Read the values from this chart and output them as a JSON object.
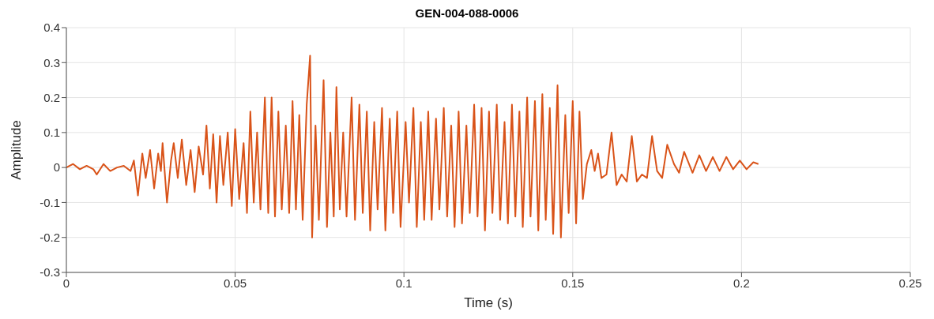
{
  "chart_data": {
    "type": "line",
    "title": "GEN-004-088-0006",
    "xlabel": "Time (s)",
    "ylabel": "Amplitude",
    "xlim": [
      0,
      0.25
    ],
    "xticks": [
      0,
      0.05,
      0.1,
      0.15,
      0.2,
      0.25
    ],
    "ylim": [
      -0.3,
      0.4
    ],
    "yticks": [
      -0.3,
      -0.2,
      -0.1,
      0,
      0.1,
      0.2,
      0.3,
      0.4
    ],
    "grid": true,
    "marker": "none",
    "line_style": "solid",
    "series": [
      {
        "color": "#d95319",
        "x": [
          0,
          0.002,
          0.004,
          0.006,
          0.008,
          0.009,
          0.011,
          0.013,
          0.015,
          0.017,
          0.019,
          0.02,
          0.0212,
          0.0225,
          0.0235,
          0.0248,
          0.026,
          0.0272,
          0.028,
          0.0285,
          0.0298,
          0.031,
          0.0318,
          0.033,
          0.0342,
          0.0355,
          0.0368,
          0.038,
          0.0392,
          0.0405,
          0.0415,
          0.0425,
          0.0435,
          0.0445,
          0.0455,
          0.0465,
          0.0478,
          0.049,
          0.05,
          0.0512,
          0.0525,
          0.0535,
          0.0545,
          0.0555,
          0.0565,
          0.0575,
          0.0588,
          0.0598,
          0.0608,
          0.0618,
          0.0628,
          0.0638,
          0.065,
          0.066,
          0.067,
          0.068,
          0.069,
          0.07,
          0.0712,
          0.0722,
          0.0728,
          0.0738,
          0.0748,
          0.0762,
          0.0772,
          0.0782,
          0.0792,
          0.08,
          0.081,
          0.082,
          0.083,
          0.0845,
          0.0855,
          0.0868,
          0.0878,
          0.089,
          0.09,
          0.0912,
          0.0922,
          0.0935,
          0.0945,
          0.0958,
          0.0968,
          0.098,
          0.099,
          0.1005,
          0.1015,
          0.1028,
          0.1038,
          0.105,
          0.106,
          0.1072,
          0.1082,
          0.1095,
          0.1105,
          0.1118,
          0.1128,
          0.114,
          0.115,
          0.1162,
          0.1172,
          0.1185,
          0.1195,
          0.1208,
          0.1218,
          0.123,
          0.124,
          0.1252,
          0.1262,
          0.1275,
          0.1285,
          0.1298,
          0.1308,
          0.132,
          0.133,
          0.1342,
          0.1352,
          0.1365,
          0.1375,
          0.1388,
          0.1398,
          0.141,
          0.142,
          0.1432,
          0.1442,
          0.1455,
          0.1465,
          0.1478,
          0.1488,
          0.15,
          0.151,
          0.152,
          0.153,
          0.1542,
          0.1555,
          0.1565,
          0.1575,
          0.1585,
          0.16,
          0.1615,
          0.163,
          0.1645,
          0.166,
          0.1675,
          0.169,
          0.1705,
          0.172,
          0.1735,
          0.175,
          0.1765,
          0.178,
          0.18,
          0.1815,
          0.183,
          0.1855,
          0.1875,
          0.1895,
          0.1915,
          0.1935,
          0.1955,
          0.1975,
          0.1995,
          0.2015,
          0.2035,
          0.205
        ],
        "values": [
          0,
          0.01,
          -0.005,
          0.005,
          -0.005,
          -0.02,
          0.01,
          -0.01,
          0,
          0.005,
          -0.01,
          0.02,
          -0.08,
          0.04,
          -0.03,
          0.05,
          -0.06,
          0.04,
          -0.01,
          0.07,
          -0.1,
          0.02,
          0.07,
          -0.03,
          0.08,
          -0.05,
          0.05,
          -0.07,
          0.06,
          -0.02,
          0.12,
          -0.06,
          0.095,
          -0.1,
          0.09,
          -0.05,
          0.1,
          -0.11,
          0.11,
          -0.09,
          0.07,
          -0.13,
          0.16,
          -0.1,
          0.1,
          -0.12,
          0.2,
          -0.13,
          0.2,
          -0.14,
          0.16,
          -0.12,
          0.12,
          -0.13,
          0.19,
          -0.12,
          0.15,
          -0.15,
          0.18,
          0.32,
          -0.2,
          0.12,
          -0.15,
          0.25,
          -0.17,
          0.1,
          -0.14,
          0.23,
          -0.12,
          0.1,
          -0.14,
          0.2,
          -0.15,
          0.18,
          -0.13,
          0.16,
          -0.18,
          0.13,
          -0.12,
          0.17,
          -0.18,
          0.14,
          -0.13,
          0.16,
          -0.17,
          0.13,
          -0.1,
          0.17,
          -0.17,
          0.13,
          -0.15,
          0.16,
          -0.15,
          0.14,
          -0.12,
          0.17,
          -0.14,
          0.12,
          -0.17,
          0.16,
          -0.16,
          0.12,
          -0.13,
          0.18,
          -0.14,
          0.17,
          -0.18,
          0.16,
          -0.13,
          0.18,
          -0.15,
          0.13,
          -0.16,
          0.18,
          -0.14,
          0.16,
          -0.17,
          0.2,
          -0.14,
          0.19,
          -0.18,
          0.21,
          -0.15,
          0.17,
          -0.19,
          0.235,
          -0.2,
          0.15,
          -0.13,
          0.19,
          -0.16,
          0.16,
          -0.09,
          0.01,
          0.05,
          -0.01,
          0.04,
          -0.03,
          -0.02,
          0.1,
          -0.05,
          -0.02,
          -0.04,
          0.09,
          -0.04,
          -0.02,
          -0.03,
          0.09,
          -0.01,
          -0.03,
          0.065,
          0.01,
          -0.015,
          0.045,
          -0.015,
          0.035,
          -0.01,
          0.03,
          -0.01,
          0.03,
          -0.005,
          0.02,
          -0.005,
          0.015,
          0.01
        ]
      }
    ]
  }
}
